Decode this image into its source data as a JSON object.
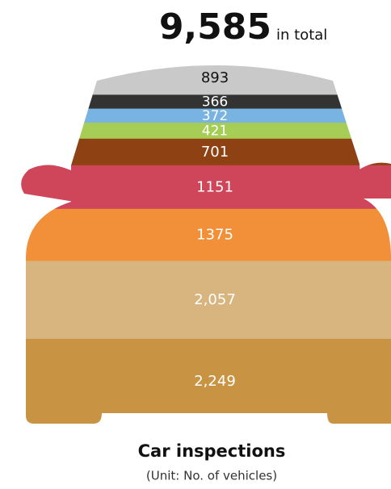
{
  "chart_data": {
    "type": "stacked_bar",
    "title": "9,585",
    "title_suffix": "in total",
    "footer_title": "Car inspections",
    "footer_subtitle": "(Unit: No. of vehicles)",
    "values": [
      2249,
      2057,
      1375,
      1151,
      701,
      421,
      372,
      366,
      893
    ],
    "value_labels": [
      "2,249",
      "2,057",
      "1375",
      "1151",
      "701",
      "421",
      "372",
      "366",
      "893"
    ],
    "colors": [
      "#c89444",
      "#d8b47e",
      "#f29039",
      "#cf4559",
      "#8e4213",
      "#a6cd55",
      "#78b3e1",
      "#333333",
      "#c9c9c9"
    ],
    "label_colors": [
      "#ffffff",
      "#ffffff",
      "#ffffff",
      "#ffffff",
      "#ffffff",
      "#ffffff",
      "#ffffff",
      "#ffffff",
      "#111111"
    ]
  }
}
